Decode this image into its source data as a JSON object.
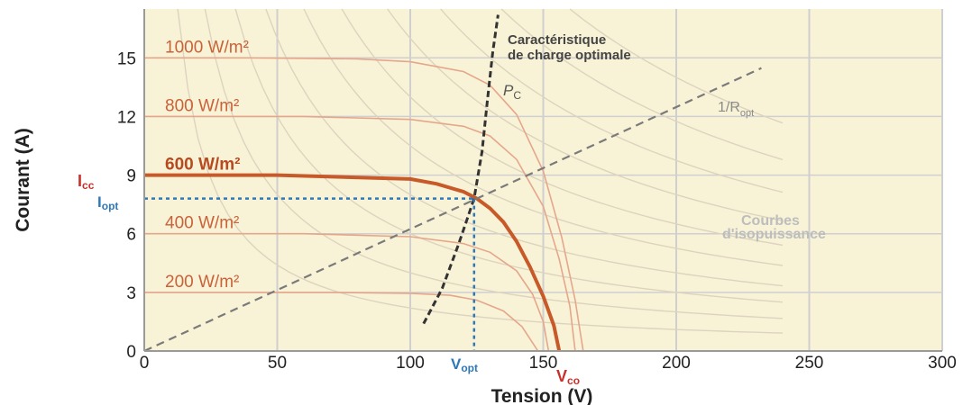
{
  "chart_data": {
    "type": "line",
    "title": "",
    "xlabel": "Tension (V)",
    "ylabel": "Courant (A)",
    "xlim": [
      0,
      300
    ],
    "ylim": [
      0,
      17.5
    ],
    "x_ticks": [
      "0",
      "50",
      "100",
      "150",
      "200",
      "250",
      "300"
    ],
    "y_ticks": [
      "0",
      "3",
      "6",
      "9",
      "12",
      "15"
    ],
    "x_tick_values": [
      0,
      50,
      100,
      150,
      200,
      250,
      300
    ],
    "y_tick_values": [
      0,
      3,
      6,
      9,
      12,
      15
    ],
    "grid": true,
    "colors": {
      "background": "#f8f3d6",
      "grid": "#cfcfcf",
      "irradiance_curve": "#e6a68b",
      "main_curve": "#c85a2a",
      "isopower": "#ddd3bf",
      "charge_curve": "#333333",
      "ropt_line": "#7a7a7a",
      "vco_label": "#c9302c",
      "opt_marker": "#2f78b8",
      "irradiance_label": "#c9623a"
    },
    "series": [
      {
        "name": "1000 W/m²",
        "isc": 15,
        "voc": 165,
        "highlight": false,
        "points": [
          [
            0,
            15
          ],
          [
            40,
            15
          ],
          [
            80,
            14.95
          ],
          [
            100,
            14.8
          ],
          [
            120,
            14.3
          ],
          [
            130,
            13.6
          ],
          [
            140,
            12.1
          ],
          [
            150,
            9.2
          ],
          [
            157,
            5.8
          ],
          [
            162,
            2.6
          ],
          [
            165,
            0
          ]
        ]
      },
      {
        "name": "800 W/m²",
        "isc": 12,
        "voc": 162,
        "highlight": false,
        "points": [
          [
            0,
            12
          ],
          [
            60,
            12
          ],
          [
            100,
            11.85
          ],
          [
            120,
            11.5
          ],
          [
            130,
            11
          ],
          [
            140,
            9.8
          ],
          [
            150,
            7.4
          ],
          [
            156,
            4.7
          ],
          [
            160,
            2.3
          ],
          [
            162,
            0
          ]
        ]
      },
      {
        "name": "600 W/m²",
        "isc": 9,
        "voc": 156,
        "highlight": true,
        "points": [
          [
            0,
            9
          ],
          [
            50,
            9
          ],
          [
            100,
            8.8
          ],
          [
            110,
            8.55
          ],
          [
            120,
            8.15
          ],
          [
            125,
            7.8
          ],
          [
            130,
            7.3
          ],
          [
            135,
            6.6
          ],
          [
            140,
            5.6
          ],
          [
            145,
            4.3
          ],
          [
            150,
            2.8
          ],
          [
            154,
            1.3
          ],
          [
            156,
            0
          ]
        ]
      },
      {
        "name": "400 W/m²",
        "isc": 6,
        "voc": 152,
        "highlight": false,
        "points": [
          [
            0,
            6
          ],
          [
            60,
            6
          ],
          [
            100,
            5.85
          ],
          [
            120,
            5.5
          ],
          [
            130,
            5.05
          ],
          [
            140,
            4.1
          ],
          [
            146,
            2.9
          ],
          [
            150,
            1.5
          ],
          [
            152,
            0
          ]
        ]
      },
      {
        "name": "200 W/m²",
        "isc": 3,
        "voc": 148,
        "highlight": false,
        "points": [
          [
            0,
            3
          ],
          [
            70,
            3
          ],
          [
            100,
            2.95
          ],
          [
            115,
            2.85
          ],
          [
            125,
            2.6
          ],
          [
            135,
            2.05
          ],
          [
            142,
            1.25
          ],
          [
            148,
            0
          ]
        ]
      }
    ],
    "charge_curve": {
      "name": "Caractéristique de charge optimale",
      "points": [
        [
          105,
          1.4
        ],
        [
          112,
          3.2
        ],
        [
          118,
          5.4
        ],
        [
          121,
          6.6
        ],
        [
          124,
          7.8
        ],
        [
          127,
          10.2
        ],
        [
          129,
          12.8
        ],
        [
          131,
          15.3
        ],
        [
          133,
          17.2
        ]
      ]
    },
    "ropt_line": {
      "name": "1/Ropt",
      "slope": 0.0624,
      "x_range": [
        0,
        232
      ]
    },
    "isopower_levels": [
      220,
      400,
      600,
      800,
      1050,
      1300,
      1600,
      1950,
      2350,
      2800
    ],
    "optimal_point": {
      "vopt": 124,
      "iopt": 7.8
    },
    "vco": 156,
    "annotations": {
      "charge_line1": "Caractéristique",
      "charge_line2": "de charge optimale",
      "pc_main": "P",
      "pc_sub": "C",
      "ropt_main": "1/R",
      "ropt_sub": "opt",
      "iso_line1": "Courbes",
      "iso_line2": "d'isopuissance",
      "icc_main": "I",
      "icc_sub": "cc",
      "iopt_main": "I",
      "iopt_sub": "opt",
      "vopt_main": "V",
      "vopt_sub": "opt",
      "vco_main": "V",
      "vco_sub": "co"
    }
  }
}
